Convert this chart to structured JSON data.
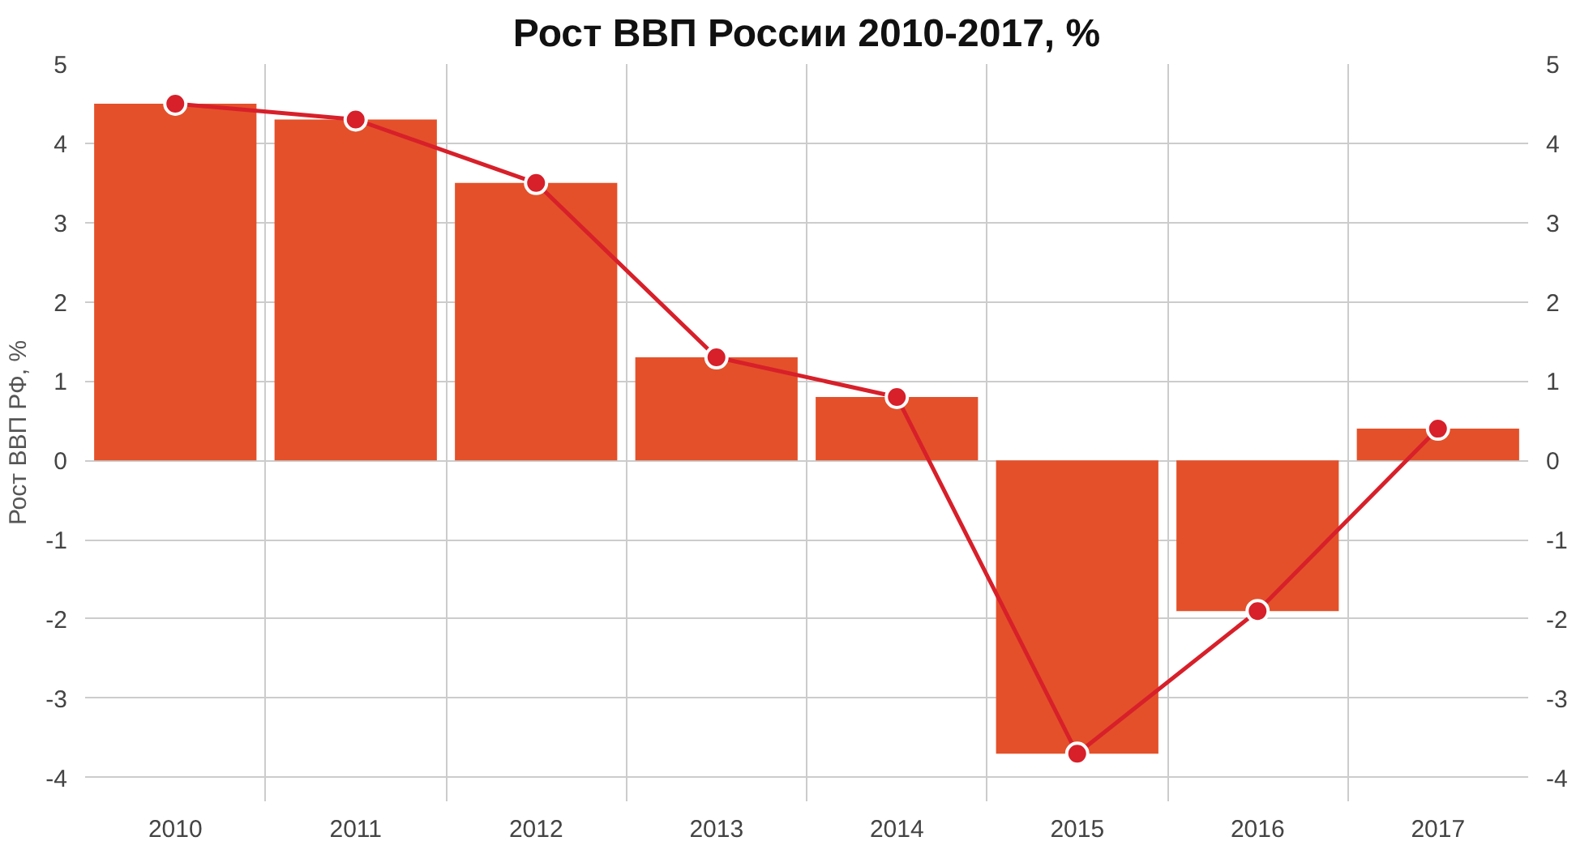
{
  "chart_data": {
    "type": "bar",
    "title": "Рост ВВП России 2010-2017, %",
    "ylabel": "Рост ВВП РФ, %",
    "categories": [
      "2010",
      "2011",
      "2012",
      "2013",
      "2014",
      "2015",
      "2016",
      "2017"
    ],
    "series": [
      {
        "color": "#e4502a",
        "values": [
          4.5,
          4.3,
          3.5,
          1.3,
          0.8,
          -3.7,
          -1.9,
          0.4
        ]
      },
      {
        "type": "line",
        "color": "#d7202a",
        "marker": "circle",
        "values": [
          4.5,
          4.3,
          3.5,
          1.3,
          0.8,
          -3.7,
          -1.9,
          0.4
        ]
      }
    ],
    "ylim": [
      -4.3,
      5
    ],
    "yticks": [
      -4,
      -3,
      -2,
      -1,
      0,
      1,
      2,
      3,
      4,
      5
    ],
    "y2lim": [
      -4.3,
      5
    ],
    "y2ticks": [
      -4,
      -3,
      -2,
      -1,
      0,
      1,
      2,
      3,
      4,
      5
    ],
    "grid": true
  }
}
